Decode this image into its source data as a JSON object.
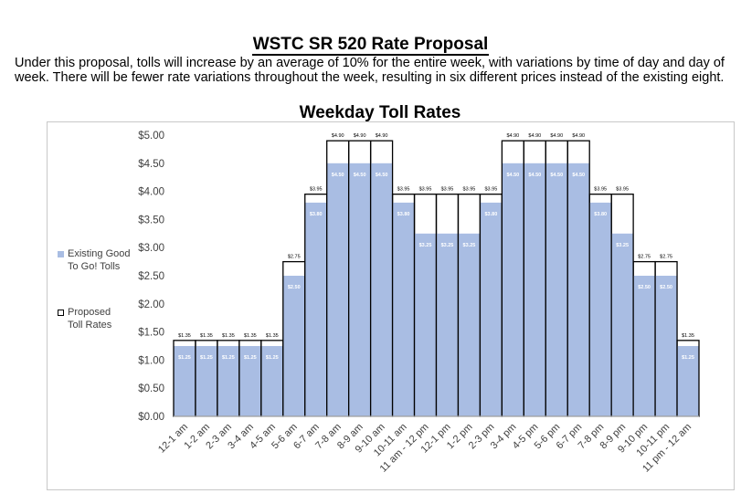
{
  "page": {
    "title": "WSTC SR 520 Rate Proposal",
    "intro": "Under this proposal, tolls will increase by an average of 10% for the entire week, with variations by time of day and day of week. There will be fewer rate variations throughout the week, resulting in six different prices instead of the existing eight."
  },
  "colors": {
    "existing_fill": "#a9bde3",
    "proposed_outline": "#000000",
    "axis_text": "#404040",
    "existing_label_text": "#ffffff"
  },
  "chart_data": {
    "type": "bar",
    "title": "Weekday Toll Rates",
    "xlabel": "",
    "ylabel": "",
    "ylim": [
      0,
      5
    ],
    "yticks": [
      "$0.00",
      "$0.50",
      "$1.00",
      "$1.50",
      "$2.00",
      "$2.50",
      "$3.00",
      "$3.50",
      "$4.00",
      "$4.50",
      "$5.00"
    ],
    "grid": false,
    "legend_position": "left",
    "categories": [
      "12-1 am",
      "1-2 am",
      "2-3 am",
      "3-4 am",
      "4-5 am",
      "5-6 am",
      "6-7 am",
      "7-8 am",
      "8-9 am",
      "9-10 am",
      "10-11 am",
      "11 am - 12 pm",
      "12-1 pm",
      "1-2 pm",
      "2-3 pm",
      "3-4 pm",
      "4-5 pm",
      "5-6 pm",
      "6-7 pm",
      "7-8 pm",
      "8-9 pm",
      "9-10 pm",
      "10-11 pm",
      "11 pm - 12 am"
    ],
    "series": [
      {
        "name": "Existing Good To Go! Tolls",
        "values": [
          1.25,
          1.25,
          1.25,
          1.25,
          1.25,
          2.5,
          3.8,
          4.5,
          4.5,
          4.5,
          3.8,
          3.25,
          3.25,
          3.25,
          3.8,
          4.5,
          4.5,
          4.5,
          4.5,
          3.8,
          3.25,
          2.5,
          2.5,
          1.25
        ],
        "labels": [
          "$1.25",
          "$1.25",
          "$1.25",
          "$1.25",
          "$1.25",
          "$2.50",
          "$3.80",
          "$4.50",
          "$4.50",
          "$4.50",
          "$3.80",
          "$3.25",
          "$3.25",
          "$3.25",
          "$3.80",
          "$4.50",
          "$4.50",
          "$4.50",
          "$4.50",
          "$3.80",
          "$3.25",
          "$2.50",
          "$2.50",
          "$1.25"
        ]
      },
      {
        "name": "Proposed Toll Rates",
        "values": [
          1.35,
          1.35,
          1.35,
          1.35,
          1.35,
          2.75,
          3.95,
          4.9,
          4.9,
          4.9,
          3.95,
          3.95,
          3.95,
          3.95,
          3.95,
          4.9,
          4.9,
          4.9,
          4.9,
          3.95,
          3.95,
          2.75,
          2.75,
          1.35
        ],
        "labels": [
          "$1.35",
          "$1.35",
          "$1.35",
          "$1.35",
          "$1.35",
          "$2.75",
          "$3.95",
          "$4.90",
          "$4.90",
          "$4.90",
          "$3.95",
          "$3.95",
          "$3.95",
          "$3.95",
          "$3.95",
          "$4.90",
          "$4.90",
          "$4.90",
          "$4.90",
          "$3.95",
          "$3.95",
          "$2.75",
          "$2.75",
          "$1.35"
        ]
      }
    ]
  }
}
